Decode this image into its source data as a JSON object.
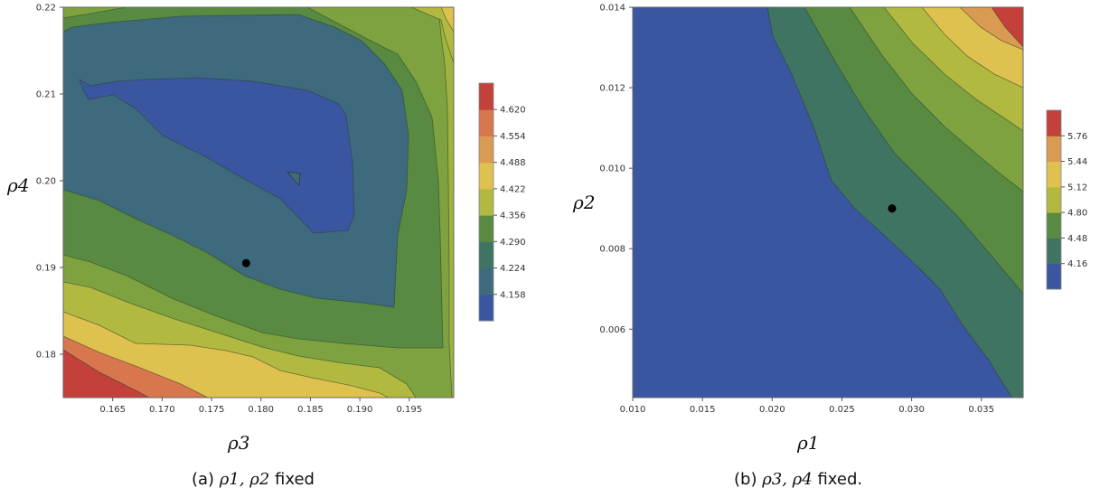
{
  "chart_data": [
    {
      "type": "heatmap",
      "subtype": "contour",
      "xlabel": "ρ3",
      "ylabel": "ρ4",
      "xlim": [
        0.16,
        0.1995
      ],
      "ylim": [
        0.175,
        0.22
      ],
      "xticks": [
        "0.165",
        "0.170",
        "0.175",
        "0.180",
        "0.185",
        "0.190",
        "0.195"
      ],
      "yticks": [
        "0.18",
        "0.19",
        "0.20",
        "0.21",
        "0.22"
      ],
      "legend_levels": [
        "4.158",
        "4.224",
        "4.290",
        "4.356",
        "4.422",
        "4.488",
        "4.554",
        "4.620"
      ],
      "colors": [
        "#3b56a0",
        "#3e6a7e",
        "#3f7463",
        "#588b41",
        "#7da23f",
        "#b1b941",
        "#dfc14f",
        "#d99a51",
        "#d8774e",
        "#c3403b"
      ],
      "grid": false,
      "legend_position": "right",
      "marker": {
        "x": 0.1785,
        "y": 0.1905
      },
      "caption_prefix": "(a) ",
      "caption_math": "ρ1, ρ2",
      "caption_suffix": " fixed"
    },
    {
      "type": "heatmap",
      "subtype": "contour",
      "xlabel": "ρ1",
      "ylabel": "ρ2",
      "xlim": [
        0.01,
        0.038
      ],
      "ylim": [
        0.0043,
        0.014
      ],
      "xticks": [
        "0.010",
        "0.015",
        "0.020",
        "0.025",
        "0.030",
        "0.035"
      ],
      "yticks": [
        "0.006",
        "0.008",
        "0.010",
        "0.012",
        "0.014"
      ],
      "legend_levels": [
        "4.16",
        "4.48",
        "4.80",
        "5.12",
        "5.44",
        "5.76"
      ],
      "colors": [
        "#3b56a0",
        "#3f7463",
        "#588b41",
        "#7da23f",
        "#b1b941",
        "#dfc14f",
        "#d99a51",
        "#c3403b"
      ],
      "grid": false,
      "legend_position": "right",
      "marker": {
        "x": 0.0286,
        "y": 0.009
      },
      "caption_prefix": "(b) ",
      "caption_math": "ρ3, ρ4",
      "caption_suffix": " fixed."
    }
  ]
}
